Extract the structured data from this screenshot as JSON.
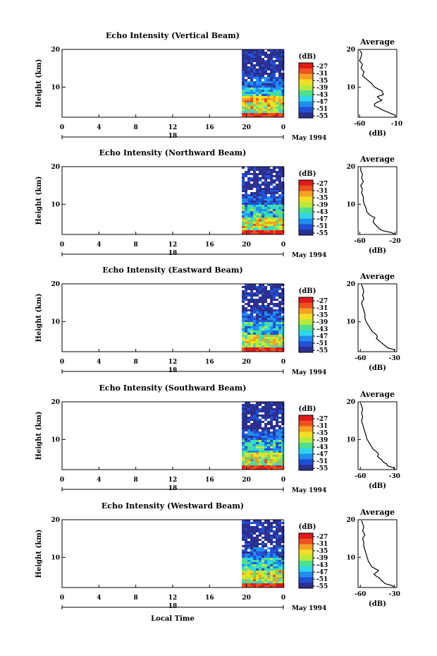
{
  "chart_data": {
    "type": "heatmap",
    "month_label": "May 1994",
    "date_label": "18",
    "xlabel": "Local Time",
    "x_ticks": [
      "0",
      "4",
      "8",
      "12",
      "16",
      "20",
      "0"
    ],
    "xlim": [
      0,
      24
    ],
    "ylabel": "Height (km)",
    "y_ticks": [
      "20",
      "10"
    ],
    "ylim": [
      2,
      20
    ],
    "colorbar_unit": "(dB)",
    "colorbar_ticks": [
      "-27",
      "-31",
      "-35",
      "-39",
      "-43",
      "-47",
      "-51",
      "-55"
    ],
    "colorbar_range": [
      -57,
      -25
    ],
    "colorbar_colors": [
      "#2b2f8f",
      "#2050d8",
      "#1f8ef0",
      "#2ad8e8",
      "#4ee08a",
      "#b8ea3c",
      "#f2e020",
      "#f5a020",
      "#ee5020",
      "#e21818"
    ],
    "profile_title": "Average",
    "profile_xlabel": "(dB)",
    "profile_y_ticks": [
      "20",
      "10"
    ],
    "data_start_hour": 19.5,
    "panels": [
      {
        "title": "Echo Intensity (Vertical Beam)",
        "profile_xticks": [
          "-60",
          "-10"
        ],
        "profile_xlim": [
          -62,
          -10
        ],
        "profile": [
          [
            2,
            -12
          ],
          [
            2.5,
            -12
          ],
          [
            3,
            -18
          ],
          [
            3.5,
            -24
          ],
          [
            4,
            -30
          ],
          [
            4.5,
            -34
          ],
          [
            5,
            -40
          ],
          [
            5.5,
            -40
          ],
          [
            6,
            -36
          ],
          [
            6.5,
            -30
          ],
          [
            7,
            -34
          ],
          [
            7.5,
            -36
          ],
          [
            8,
            -28
          ],
          [
            9,
            -30
          ],
          [
            10,
            -40
          ],
          [
            11,
            -44
          ],
          [
            12,
            -50
          ],
          [
            13,
            -56
          ],
          [
            14,
            -54
          ],
          [
            15,
            -58
          ],
          [
            16,
            -56
          ],
          [
            17,
            -60
          ],
          [
            18,
            -58
          ],
          [
            19,
            -57
          ],
          [
            19.8,
            -60
          ]
        ]
      },
      {
        "title": "Echo Intensity (Northward Beam)",
        "profile_xticks": [
          "-60",
          "-20"
        ],
        "profile_xlim": [
          -62,
          -18
        ],
        "profile": [
          [
            2,
            -20
          ],
          [
            2.5,
            -24
          ],
          [
            3,
            -34
          ],
          [
            3.5,
            -38
          ],
          [
            4,
            -40
          ],
          [
            4.5,
            -42
          ],
          [
            5,
            -44
          ],
          [
            5.5,
            -45
          ],
          [
            6,
            -44
          ],
          [
            6.5,
            -43
          ],
          [
            7,
            -48
          ],
          [
            7.5,
            -50
          ],
          [
            8,
            -52
          ],
          [
            9,
            -53
          ],
          [
            10,
            -55
          ],
          [
            11,
            -56
          ],
          [
            12,
            -56
          ],
          [
            13,
            -58
          ],
          [
            14,
            -57
          ],
          [
            15,
            -59
          ],
          [
            16,
            -56
          ],
          [
            17,
            -58
          ],
          [
            18,
            -57
          ],
          [
            19,
            -59
          ],
          [
            19.8,
            -59
          ]
        ]
      },
      {
        "title": "Echo Intensity (Eastward Beam)",
        "profile_xticks": [
          "-60",
          "-30"
        ],
        "profile_xlim": [
          -62,
          -28
        ],
        "profile": [
          [
            2,
            -30
          ],
          [
            2.5,
            -30
          ],
          [
            3,
            -36
          ],
          [
            3.5,
            -38
          ],
          [
            4,
            -40
          ],
          [
            4.5,
            -42
          ],
          [
            5,
            -44
          ],
          [
            5.5,
            -46
          ],
          [
            6,
            -45
          ],
          [
            6.5,
            -46
          ],
          [
            7,
            -48
          ],
          [
            7.5,
            -50
          ],
          [
            8,
            -51
          ],
          [
            9,
            -53
          ],
          [
            10,
            -55
          ],
          [
            11,
            -56
          ],
          [
            12,
            -56
          ],
          [
            13,
            -57
          ],
          [
            14,
            -58
          ],
          [
            15,
            -59
          ],
          [
            16,
            -57
          ],
          [
            17,
            -58
          ],
          [
            18,
            -57
          ],
          [
            19,
            -58
          ],
          [
            19.8,
            -59
          ]
        ]
      },
      {
        "title": "Echo Intensity (Southward Beam)",
        "profile_xticks": [
          "-60",
          "-30"
        ],
        "profile_xlim": [
          -62,
          -28
        ],
        "profile": [
          [
            2,
            -30
          ],
          [
            2.5,
            -31
          ],
          [
            3,
            -36
          ],
          [
            3.5,
            -37
          ],
          [
            4,
            -40
          ],
          [
            4.5,
            -41
          ],
          [
            5,
            -43
          ],
          [
            5.5,
            -45
          ],
          [
            6,
            -44
          ],
          [
            6.5,
            -45
          ],
          [
            7,
            -47
          ],
          [
            7.5,
            -49
          ],
          [
            8,
            -50
          ],
          [
            9,
            -52
          ],
          [
            10,
            -54
          ],
          [
            11,
            -55
          ],
          [
            12,
            -56
          ],
          [
            13,
            -57
          ],
          [
            14,
            -58
          ],
          [
            15,
            -59
          ],
          [
            16,
            -58
          ],
          [
            17,
            -59
          ],
          [
            18,
            -58
          ],
          [
            19,
            -59
          ],
          [
            19.8,
            -60
          ]
        ]
      },
      {
        "title": "Echo Intensity (Westward Beam)",
        "profile_xticks": [
          "-60",
          "-30"
        ],
        "profile_xlim": [
          -62,
          -28
        ],
        "profile": [
          [
            2,
            -30
          ],
          [
            2.5,
            -32
          ],
          [
            3,
            -38
          ],
          [
            3.5,
            -40
          ],
          [
            4,
            -42
          ],
          [
            4.5,
            -43
          ],
          [
            5,
            -46
          ],
          [
            5.5,
            -48
          ],
          [
            6,
            -46
          ],
          [
            6.5,
            -44
          ],
          [
            7,
            -47
          ],
          [
            7.5,
            -50
          ],
          [
            8,
            -51
          ],
          [
            9,
            -53
          ],
          [
            10,
            -54
          ],
          [
            11,
            -55
          ],
          [
            12,
            -56
          ],
          [
            13,
            -57
          ],
          [
            14,
            -57
          ],
          [
            15,
            -58
          ],
          [
            16,
            -56
          ],
          [
            17,
            -58
          ],
          [
            18,
            -57
          ],
          [
            19,
            -58
          ],
          [
            19.8,
            -59
          ]
        ]
      }
    ]
  }
}
